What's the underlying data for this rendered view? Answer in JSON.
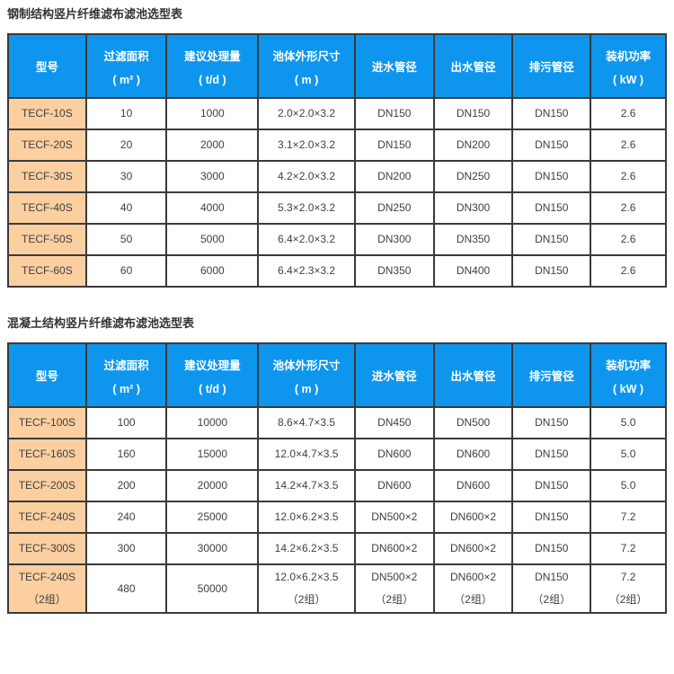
{
  "colors": {
    "header_bg": "#0e96ee",
    "model_bg": "#fbcfa0",
    "border": "#3a3a3a",
    "text": "#404040",
    "header_text": "#ffffff",
    "title_color": "#333333",
    "page_bg": "#ffffff"
  },
  "tables": [
    {
      "title": "钢制结构竖片纤维滤布滤池选型表",
      "headers": [
        {
          "line1": "型号",
          "line2": ""
        },
        {
          "line1": "过滤面积",
          "line2": "( m² )"
        },
        {
          "line1": "建议处理量",
          "line2": "( t/d )"
        },
        {
          "line1": "池体外形尺寸",
          "line2": "( m )"
        },
        {
          "line1": "进水管径",
          "line2": ""
        },
        {
          "line1": "出水管径",
          "line2": ""
        },
        {
          "line1": "排污管径",
          "line2": ""
        },
        {
          "line1": "装机功率",
          "line2": "( kW )"
        }
      ],
      "rows": [
        [
          "TECF-10S",
          "10",
          "1000",
          "2.0×2.0×3.2",
          "DN150",
          "DN150",
          "DN150",
          "2.6"
        ],
        [
          "TECF-20S",
          "20",
          "2000",
          "3.1×2.0×3.2",
          "DN150",
          "DN200",
          "DN150",
          "2.6"
        ],
        [
          "TECF-30S",
          "30",
          "3000",
          "4.2×2.0×3.2",
          "DN200",
          "DN250",
          "DN150",
          "2.6"
        ],
        [
          "TECF-40S",
          "40",
          "4000",
          "5.3×2.0×3.2",
          "DN250",
          "DN300",
          "DN150",
          "2.6"
        ],
        [
          "TECF-50S",
          "50",
          "5000",
          "6.4×2.0×3.2",
          "DN300",
          "DN350",
          "DN150",
          "2.6"
        ],
        [
          "TECF-60S",
          "60",
          "6000",
          "6.4×2.3×3.2",
          "DN350",
          "DN400",
          "DN150",
          "2.6"
        ]
      ]
    },
    {
      "title": "混凝土结构竖片纤维滤布滤池选型表",
      "headers": [
        {
          "line1": "型号",
          "line2": ""
        },
        {
          "line1": "过滤面积",
          "line2": "( m² )"
        },
        {
          "line1": "建议处理量",
          "line2": "( t/d )"
        },
        {
          "line1": "池体外形尺寸",
          "line2": "( m )"
        },
        {
          "line1": "进水管径",
          "line2": ""
        },
        {
          "line1": "出水管径",
          "line2": ""
        },
        {
          "line1": "排污管径",
          "line2": ""
        },
        {
          "line1": "装机功率",
          "line2": "( kW )"
        }
      ],
      "rows": [
        [
          "TECF-100S",
          "100",
          "10000",
          "8.6×4.7×3.5",
          "DN450",
          "DN500",
          "DN150",
          "5.0"
        ],
        [
          "TECF-160S",
          "160",
          "15000",
          "12.0×4.7×3.5",
          "DN600",
          "DN600",
          "DN150",
          "5.0"
        ],
        [
          "TECF-200S",
          "200",
          "20000",
          "14.2×4.7×3.5",
          "DN600",
          "DN600",
          "DN150",
          "5.0"
        ],
        [
          "TECF-240S",
          "240",
          "25000",
          "12.0×6.2×3.5",
          "DN500×2",
          "DN600×2",
          "DN150",
          "7.2"
        ],
        [
          "TECF-300S",
          "300",
          "30000",
          "14.2×6.2×3.5",
          "DN600×2",
          "DN600×2",
          "DN150",
          "7.2"
        ],
        [
          "TECF-240S\n（2组）",
          "480",
          "50000",
          "12.0×6.2×3.5\n（2组）",
          "DN500×2\n（2组）",
          "DN600×2\n（2组）",
          "DN150\n（2组）",
          "7.2\n（2组）"
        ]
      ]
    }
  ]
}
